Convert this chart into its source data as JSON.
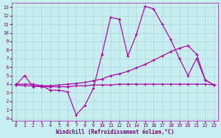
{
  "title": "",
  "xlabel": "Windchill (Refroidissement éolien,°C)",
  "background_color": "#c8eef0",
  "grid_color": "#b0d8dc",
  "line_color": "#aa00aa",
  "x_ticks": [
    0,
    1,
    2,
    3,
    4,
    5,
    6,
    7,
    8,
    9,
    10,
    11,
    12,
    13,
    14,
    15,
    16,
    17,
    18,
    19,
    20,
    21,
    22,
    23
  ],
  "y_ticks": [
    0,
    1,
    2,
    3,
    4,
    5,
    6,
    7,
    8,
    9,
    10,
    11,
    12,
    13
  ],
  "ylim": [
    -0.3,
    13.5
  ],
  "xlim": [
    -0.5,
    23.5
  ],
  "line1_x": [
    0,
    1,
    2,
    3,
    4,
    5,
    6,
    7,
    8,
    9,
    10,
    11,
    12,
    13,
    14,
    15,
    16,
    17,
    18,
    19,
    20,
    21,
    22,
    23
  ],
  "line1_y": [
    3.9,
    5.0,
    3.7,
    3.8,
    3.3,
    3.3,
    3.1,
    0.4,
    1.5,
    3.5,
    7.5,
    11.8,
    11.6,
    7.3,
    9.8,
    13.1,
    12.8,
    11.0,
    9.2,
    7.0,
    5.0,
    7.0,
    4.5,
    3.9
  ],
  "line2_x": [
    0,
    1,
    2,
    3,
    4,
    5,
    6,
    7,
    8,
    9,
    10,
    11,
    12,
    13,
    14,
    15,
    16,
    17,
    18,
    19,
    20,
    21,
    22,
    23
  ],
  "line2_y": [
    4.0,
    4.0,
    4.0,
    3.8,
    3.8,
    3.9,
    4.0,
    4.1,
    4.2,
    4.4,
    4.6,
    5.0,
    5.2,
    5.5,
    5.9,
    6.3,
    6.8,
    7.3,
    7.8,
    8.2,
    8.5,
    7.5,
    4.5,
    3.9
  ],
  "line3_x": [
    0,
    1,
    2,
    3,
    4,
    5,
    6,
    7,
    8,
    9,
    10,
    11,
    12,
    13,
    14,
    15,
    16,
    17,
    18,
    19,
    20,
    21,
    22,
    23
  ],
  "line3_y": [
    3.9,
    3.8,
    3.8,
    3.7,
    3.7,
    3.7,
    3.7,
    3.8,
    3.8,
    3.9,
    3.9,
    3.9,
    4.0,
    4.0,
    4.0,
    4.0,
    4.0,
    4.0,
    4.0,
    4.0,
    4.0,
    4.0,
    4.0,
    3.9
  ]
}
